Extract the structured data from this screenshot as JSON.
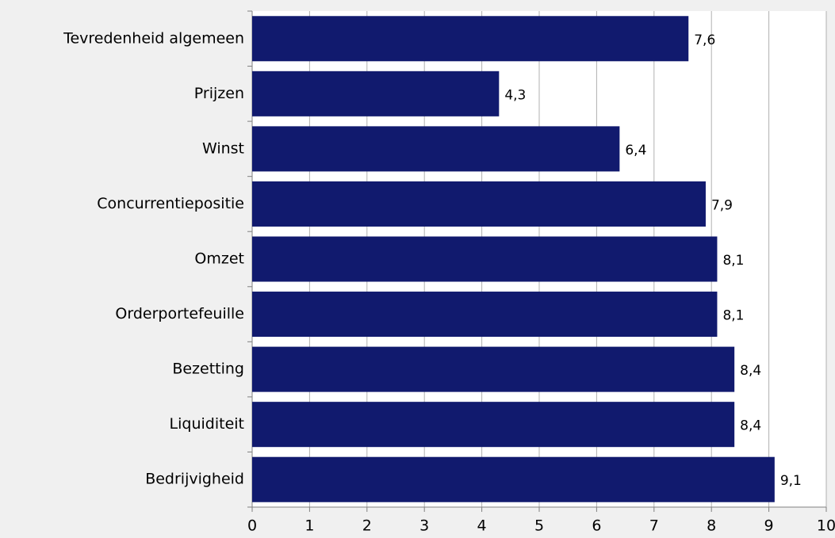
{
  "chart_data": {
    "type": "barh",
    "categories": [
      "Tevredenheid algemeen",
      "Prijzen",
      "Winst",
      "Concurrentiepositie",
      "Omzet",
      "Orderportefeuille",
      "Bezetting",
      "Liquiditeit",
      "Bedrijvigheid"
    ],
    "values": [
      7.6,
      4.3,
      6.4,
      7.9,
      8.1,
      8.1,
      8.4,
      8.4,
      9.1
    ],
    "value_labels": [
      "7,6",
      "4,3",
      "6,4",
      "7,9",
      "8,1",
      "8,1",
      "8,4",
      "8,4",
      "9,1"
    ],
    "color": "#111a6e",
    "xlim": [
      0,
      10
    ],
    "xticks": [
      0,
      1,
      2,
      3,
      4,
      5,
      6,
      7,
      8,
      9,
      10
    ],
    "grid": true
  }
}
